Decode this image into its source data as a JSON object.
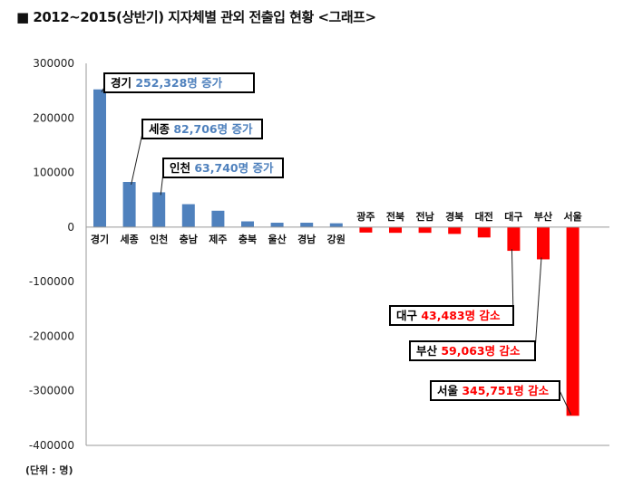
{
  "title": "■  2012~2015(상반기) 지자체별 관외 전출입 현황 <그래프>",
  "unit_label": "(단위 : 명)",
  "chart_data": {
    "type": "bar",
    "title": "2012~2015(상반기) 지자체별 관외 전출입 현황 <그래프>",
    "categories": [
      "경기",
      "세종",
      "인천",
      "충남",
      "제주",
      "충북",
      "울산",
      "경남",
      "강원",
      "광주",
      "전북",
      "전남",
      "경북",
      "대전",
      "대구",
      "부산",
      "서울"
    ],
    "values": [
      252328,
      82706,
      63740,
      42000,
      30000,
      10500,
      8000,
      8000,
      7000,
      -10000,
      -10500,
      -10500,
      -12500,
      -19000,
      -43483,
      -59063,
      -345751
    ],
    "ylim": [
      -400000,
      300000
    ],
    "yticks": [
      300000,
      200000,
      100000,
      0,
      -100000,
      -200000,
      -300000,
      -400000
    ],
    "grid": false,
    "colors": {
      "positive": "#4f81bd",
      "negative": "#ff0000",
      "callout_positive": "#4f81bd",
      "callout_negative": "#ff0000"
    },
    "annotations": [
      {
        "category": "경기",
        "region": "경기",
        "text": "252,328명 증가"
      },
      {
        "category": "세종",
        "region": "세종",
        "text": "82,706명 증가"
      },
      {
        "category": "인천",
        "region": "인천",
        "text": "63,740명 증가"
      },
      {
        "category": "대구",
        "region": "대구",
        "text": "43,483명 감소"
      },
      {
        "category": "부산",
        "region": "부산",
        "text": "59,063명 감소"
      },
      {
        "category": "서울",
        "region": "서울",
        "text": "345,751명 감소"
      }
    ]
  }
}
